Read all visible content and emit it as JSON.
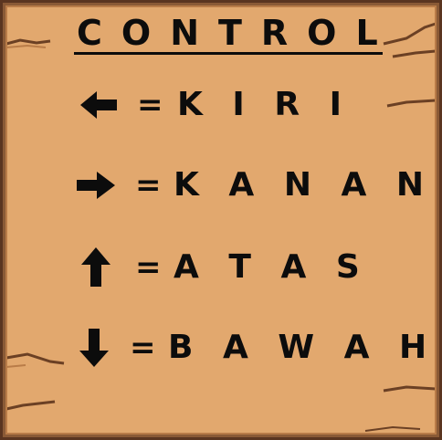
{
  "title": "CONTROL",
  "colors": {
    "parchment": "#e2a86e",
    "border_dark": "#5a3520",
    "border_mid": "#8a5a36",
    "text": "#0c0c0c"
  },
  "controls": [
    {
      "icon": "arrow-left-icon",
      "equals": "=",
      "label": "K I R I"
    },
    {
      "icon": "arrow-right-icon",
      "equals": "=",
      "label": "K A N A N"
    },
    {
      "icon": "arrow-up-icon",
      "equals": "=",
      "label": "A T A S"
    },
    {
      "icon": "arrow-down-icon",
      "equals": "=",
      "label": "B A W A H"
    }
  ]
}
